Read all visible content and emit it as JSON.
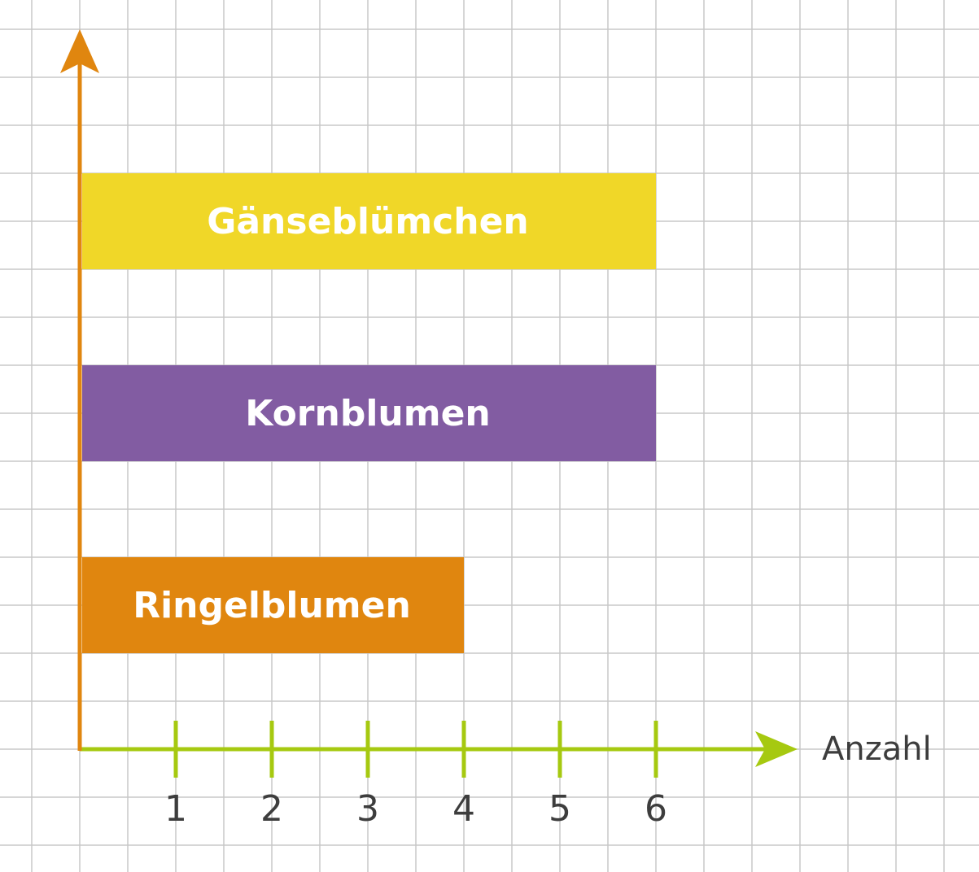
{
  "chart_data": {
    "type": "bar",
    "orientation": "horizontal",
    "categories": [
      "Gänseblümchen",
      "Kornblumen",
      "Ringelblumen"
    ],
    "values": [
      6,
      6,
      4
    ],
    "colors": [
      "#f0d728",
      "#825ca2",
      "#e0860f"
    ],
    "xlabel": "Anzahl",
    "ylabel": "",
    "xticks": [
      "1",
      "2",
      "3",
      "4",
      "5",
      "6"
    ],
    "xlim": [
      0,
      6
    ],
    "grid": true,
    "grid_color": "#c8c8c8",
    "x_axis_color": "#a6c910",
    "y_axis_color": "#e0860f"
  }
}
